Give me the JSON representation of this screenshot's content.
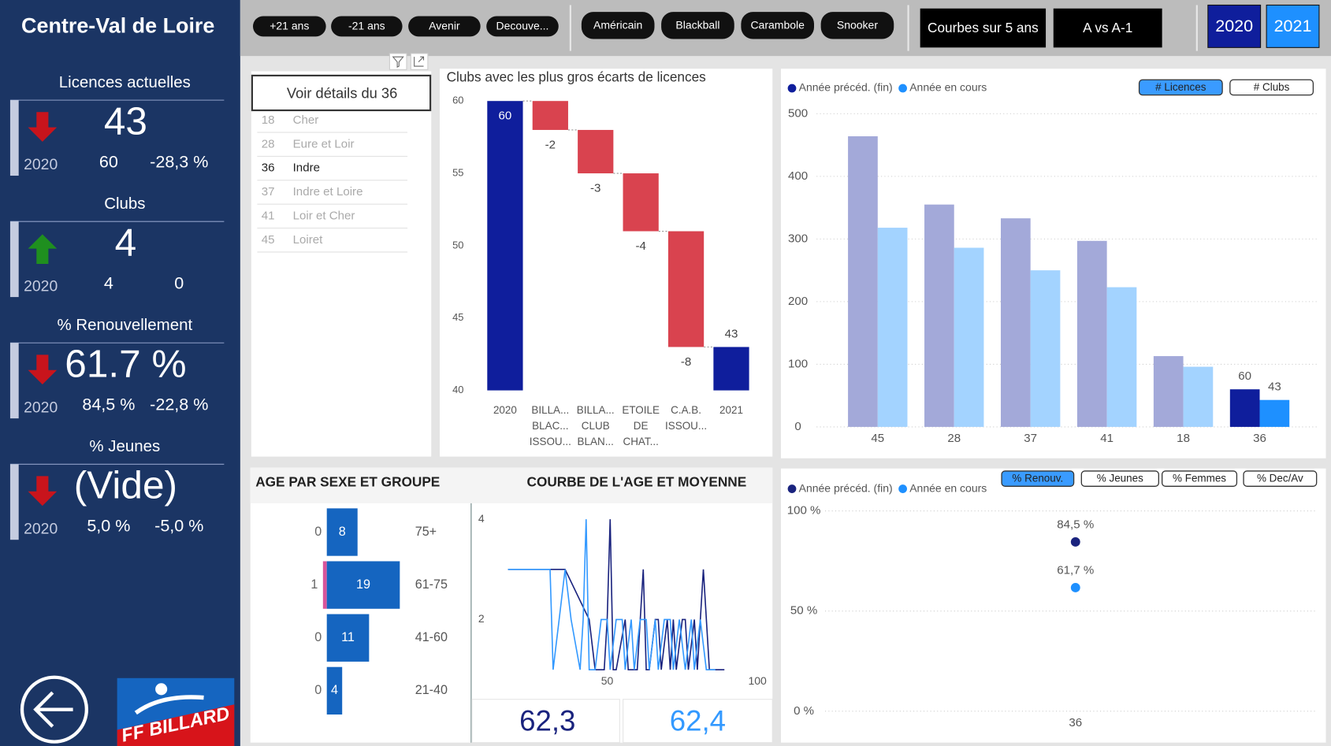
{
  "sidebar": {
    "title": "Centre-Val de Loire",
    "kpis": [
      {
        "label": "Licences actuelles",
        "value": "43",
        "year": "2020",
        "previous": "60",
        "change": "-28,3 %",
        "trend": "down"
      },
      {
        "label": "Clubs",
        "value": "4",
        "year": "2020",
        "previous": "4",
        "change": "0",
        "trend": "up"
      },
      {
        "label": "% Renouvellement",
        "value": "61.7 %",
        "year": "2020",
        "previous": "84,5 %",
        "change": "-22,8 %",
        "trend": "down"
      },
      {
        "label": "% Jeunes",
        "value": "(Vide)",
        "year": "2020",
        "previous": "5,0 %",
        "change": "-5,0 %",
        "trend": "down"
      }
    ],
    "logo": "FF BILLARD"
  },
  "toolbar": {
    "age_filters": [
      "+21 ans",
      "-21 ans",
      "Avenir",
      "Decouve..."
    ],
    "games": [
      "Américain",
      "Blackball",
      "Carambole",
      "Snooker"
    ],
    "views": [
      "Courbes sur 5 ans",
      "A vs A-1"
    ],
    "years": [
      "2020",
      "2021"
    ],
    "year_colors": [
      "#0f1e9c",
      "#1e90ff"
    ]
  },
  "slicer": {
    "button": "Voir détails du 36",
    "items": [
      {
        "code": "18",
        "name": "Cher"
      },
      {
        "code": "28",
        "name": "Eure et Loir"
      },
      {
        "code": "36",
        "name": "Indre"
      },
      {
        "code": "37",
        "name": "Indre et Loire"
      },
      {
        "code": "41",
        "name": "Loir et Cher"
      },
      {
        "code": "45",
        "name": "Loiret"
      }
    ],
    "selected": 2
  },
  "age_averages": [
    "62,3",
    "62,4"
  ],
  "chart_data": [
    {
      "type": "waterfall",
      "title": "Clubs avec les plus gros écarts de licences",
      "categories": [
        [
          "2020"
        ],
        [
          "BILLA...",
          "BLAC...",
          "ISSOU..."
        ],
        [
          "BILLA...",
          "CLUB",
          "BLAN..."
        ],
        [
          "ETOILE",
          "DE",
          "CHAT..."
        ],
        [
          "C.A.B.",
          "ISSOU..."
        ],
        [
          "2021"
        ]
      ],
      "values": [
        60,
        -2,
        -3,
        -4,
        -8,
        43
      ],
      "measure": [
        "total",
        "relative",
        "relative",
        "relative",
        "relative",
        "total"
      ],
      "total_color": "#0f1e9c",
      "decrease_color": "#d9434f",
      "ylim": [
        40,
        60
      ],
      "yticks": [
        40,
        45,
        50,
        55,
        60
      ]
    },
    {
      "type": "bar",
      "categories": [
        "45",
        "28",
        "37",
        "41",
        "18",
        "36"
      ],
      "series": [
        {
          "name": "Année précéd. (fin)",
          "color": "#0f1e9c",
          "dim_color": "#a3a9d9",
          "values": [
            464,
            355,
            333,
            297,
            113,
            60
          ]
        },
        {
          "name": "Année en cours",
          "color": "#1e90ff",
          "dim_color": "#a3d3ff",
          "values": [
            318,
            286,
            250,
            223,
            96,
            43
          ]
        }
      ],
      "highlight": 5,
      "ylim": [
        0,
        500
      ],
      "yticks": [
        0,
        100,
        200,
        300,
        400,
        500
      ],
      "grid": true,
      "legend": "top-left",
      "toggles": [
        "# Licences",
        "# Clubs"
      ],
      "active_toggle": 0
    },
    {
      "type": "butterfly",
      "title": "AGE PAR SEXE ET GROUPE",
      "categories": [
        "75+",
        "61-75",
        "41-60",
        "21-40"
      ],
      "series": [
        {
          "color": "#d9559b",
          "side": "left",
          "values": [
            0,
            1,
            0,
            0
          ]
        },
        {
          "color": "#1565c0",
          "side": "right",
          "values": [
            8,
            19,
            11,
            4
          ]
        }
      ]
    },
    {
      "type": "line",
      "title": "COURBE DE L'AGE ET MOYENNE",
      "series": [
        {
          "color": "#1a237e",
          "x": [
            17,
            36,
            44,
            46,
            49,
            50,
            51,
            52,
            53,
            56,
            57,
            60,
            62,
            63,
            64,
            66,
            67,
            68,
            70,
            71,
            72,
            73,
            75,
            76,
            77,
            79,
            80,
            82,
            84,
            89
          ],
          "values": [
            3,
            3,
            2,
            1,
            1,
            2,
            4,
            1,
            1,
            2,
            1,
            1,
            3,
            1,
            1,
            2,
            2,
            1,
            2,
            1,
            2,
            1,
            2,
            2,
            1,
            2,
            1,
            3,
            1,
            1
          ]
        },
        {
          "color": "#3399ff",
          "x": [
            17,
            31,
            32,
            34,
            36,
            38,
            41,
            42,
            43,
            44,
            46,
            48,
            50,
            51,
            53,
            55,
            56,
            58,
            59,
            61,
            63,
            64,
            66,
            67,
            69,
            71,
            72,
            74,
            76,
            78,
            79,
            81,
            83,
            86
          ],
          "values": [
            3,
            3,
            1,
            2,
            3,
            2,
            1,
            2,
            4,
            1,
            1,
            2,
            2,
            1,
            2,
            2,
            1,
            2,
            1,
            2,
            2,
            1,
            2,
            1,
            2,
            2,
            1,
            2,
            1,
            2,
            1,
            2,
            1,
            1
          ]
        }
      ],
      "xlim": [
        5,
        105
      ],
      "xticks": [
        50,
        100
      ],
      "ylim": [
        0.9,
        4.2
      ],
      "yticks": [
        2,
        4
      ]
    },
    {
      "type": "dot",
      "categories": [
        "36"
      ],
      "series": [
        {
          "name": "Année précéd. (fin)",
          "color": "#1a237e",
          "values": [
            84.5
          ],
          "value_labels": [
            "84,5 %"
          ]
        },
        {
          "name": "Année en cours",
          "color": "#1e90ff",
          "values": [
            61.7
          ],
          "value_labels": [
            "61,7 %"
          ]
        }
      ],
      "ylim": [
        0,
        100
      ],
      "yticks": [
        {
          "value": 0,
          "label": "0 %"
        },
        {
          "value": 50,
          "label": "50 %"
        },
        {
          "value": 100,
          "label": "100 %"
        }
      ],
      "grid": true,
      "legend": "top-left",
      "toggles": [
        "% Renouv.",
        "% Jeunes",
        "% Femmes",
        "% Dec/Av"
      ],
      "active_toggle": 0
    }
  ]
}
